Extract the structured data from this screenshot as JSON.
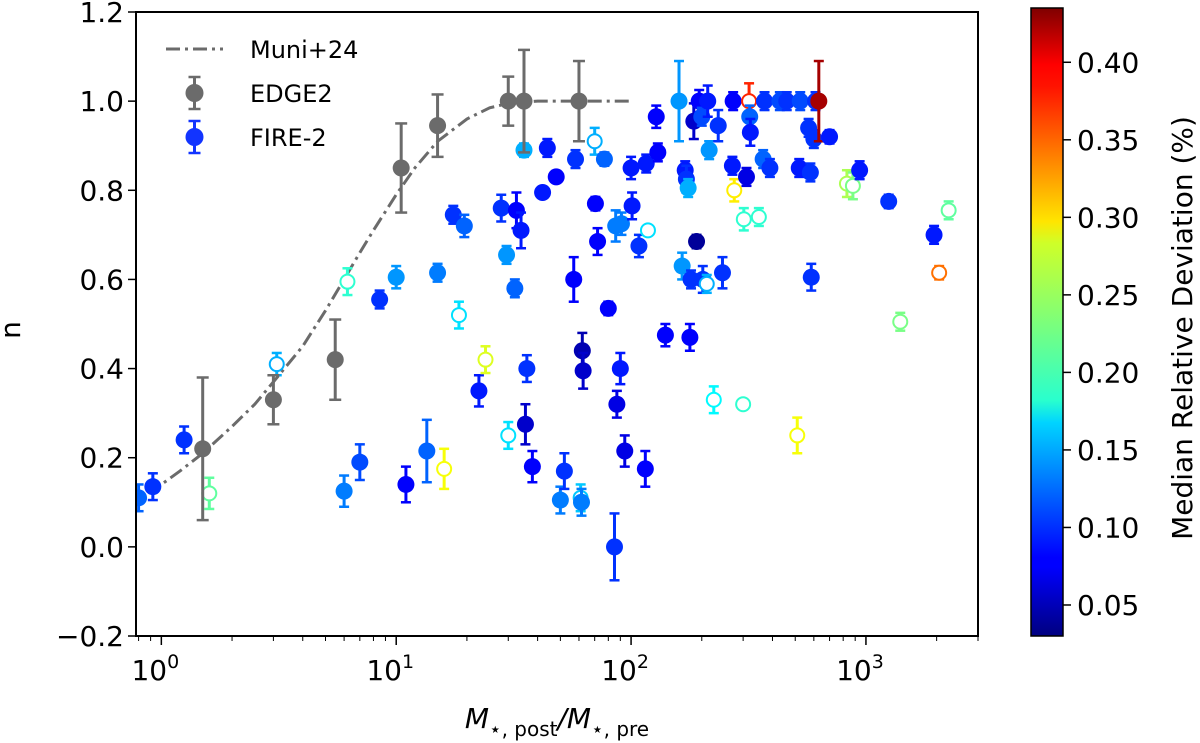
{
  "chart_data": {
    "type": "scatter",
    "xlabel_main": "M",
    "xlabel_sub1": "⋆, post",
    "xlabel_sep": "/M",
    "xlabel_sub2": "⋆, pre",
    "ylabel": "n",
    "xscale": "log",
    "xlim": [
      0.78,
      3000
    ],
    "ylim": [
      -0.2,
      1.2
    ],
    "x_tick_labels": [
      {
        "value": 1,
        "base": "10",
        "exp": "0"
      },
      {
        "value": 10,
        "base": "10",
        "exp": "1"
      },
      {
        "value": 100,
        "base": "10",
        "exp": "2"
      },
      {
        "value": 1000,
        "base": "10",
        "exp": "3"
      }
    ],
    "y_ticks": [
      -0.2,
      0.0,
      0.2,
      0.4,
      0.6,
      0.8,
      1.0,
      1.2
    ],
    "y_tick_labels": [
      "−0.2",
      "0.0",
      "0.2",
      "0.4",
      "0.6",
      "0.8",
      "1.0",
      "1.2"
    ],
    "legend": {
      "position": "top-left",
      "entries": [
        {
          "label": "Muni+24",
          "style": "dashdot",
          "color": "#6b6b6b"
        },
        {
          "label": "EDGE2",
          "style": "marker",
          "color": "#6b6b6b"
        },
        {
          "label": "FIRE-2",
          "style": "marker",
          "color": "#1234ff"
        }
      ]
    },
    "colorbar": {
      "label": "Median Relative Deviation (%)",
      "range": [
        0.03,
        0.435
      ],
      "ticks": [
        0.05,
        0.1,
        0.15,
        0.2,
        0.25,
        0.3,
        0.35,
        0.4
      ],
      "tick_labels": [
        "0.05",
        "0.10",
        "0.15",
        "0.20",
        "0.25",
        "0.30",
        "0.35",
        "0.40"
      ],
      "colormap": "jet"
    },
    "curve": {
      "name": "Muni+24",
      "color": "#6b6b6b",
      "x": [
        0.88,
        1,
        1.2,
        1.5,
        2,
        2.5,
        3,
        4,
        5,
        6,
        7,
        8,
        10,
        12,
        15,
        20,
        25,
        30,
        40,
        50,
        70,
        100
      ],
      "y": [
        0.12,
        0.14,
        0.17,
        0.21,
        0.27,
        0.32,
        0.37,
        0.45,
        0.53,
        0.6,
        0.66,
        0.71,
        0.79,
        0.85,
        0.91,
        0.96,
        0.985,
        0.995,
        1.0,
        1.0,
        1.0,
        1.0
      ]
    },
    "series": [
      {
        "name": "EDGE2",
        "color": "#6b6b6b",
        "points": [
          {
            "x": 1.5,
            "y": 0.22,
            "err": 0.16
          },
          {
            "x": 3.0,
            "y": 0.33,
            "err": 0.055
          },
          {
            "x": 5.5,
            "y": 0.42,
            "err": 0.09
          },
          {
            "x": 10.5,
            "y": 0.85,
            "err": 0.1
          },
          {
            "x": 15.0,
            "y": 0.945,
            "err": 0.07
          },
          {
            "x": 30.0,
            "y": 1.0,
            "err": 0.055
          },
          {
            "x": 35.0,
            "y": 1.0,
            "err": 0.115
          },
          {
            "x": 60.0,
            "y": 1.0,
            "err": 0.09
          }
        ]
      },
      {
        "name": "FIRE-2",
        "points": [
          {
            "x": 0.8,
            "y": 0.11,
            "c": 0.12,
            "err": 0.03
          },
          {
            "x": 0.92,
            "y": 0.135,
            "c": 0.1,
            "err": 0.03
          },
          {
            "x": 1.25,
            "y": 0.24,
            "c": 0.1,
            "err": 0.03
          },
          {
            "x": 1.6,
            "y": 0.12,
            "c": 0.22,
            "err": 0.035,
            "open": true
          },
          {
            "x": 3.1,
            "y": 0.41,
            "c": 0.15,
            "err": 0.025,
            "open": true
          },
          {
            "x": 6.0,
            "y": 0.125,
            "c": 0.13,
            "err": 0.035
          },
          {
            "x": 6.2,
            "y": 0.595,
            "c": 0.2,
            "err": 0.03,
            "open": true
          },
          {
            "x": 7.0,
            "y": 0.19,
            "c": 0.11,
            "err": 0.04
          },
          {
            "x": 8.5,
            "y": 0.555,
            "c": 0.1,
            "err": 0.02
          },
          {
            "x": 10.0,
            "y": 0.605,
            "c": 0.14,
            "err": 0.025
          },
          {
            "x": 11.0,
            "y": 0.14,
            "c": 0.08,
            "err": 0.04
          },
          {
            "x": 13.5,
            "y": 0.215,
            "c": 0.12,
            "err": 0.07
          },
          {
            "x": 15.0,
            "y": 0.615,
            "c": 0.13,
            "err": 0.02
          },
          {
            "x": 16.0,
            "y": 0.175,
            "c": 0.28,
            "err": 0.045,
            "open": true
          },
          {
            "x": 17.5,
            "y": 0.745,
            "c": 0.1,
            "err": 0.02
          },
          {
            "x": 18.5,
            "y": 0.52,
            "c": 0.17,
            "err": 0.03,
            "open": true
          },
          {
            "x": 19.5,
            "y": 0.72,
            "c": 0.12,
            "err": 0.025
          },
          {
            "x": 22.5,
            "y": 0.35,
            "c": 0.09,
            "err": 0.035
          },
          {
            "x": 24.0,
            "y": 0.42,
            "c": 0.27,
            "err": 0.03,
            "open": true
          },
          {
            "x": 28.0,
            "y": 0.76,
            "c": 0.1,
            "err": 0.03
          },
          {
            "x": 29.5,
            "y": 0.655,
            "c": 0.14,
            "err": 0.02
          },
          {
            "x": 30.0,
            "y": 0.25,
            "c": 0.17,
            "err": 0.03,
            "open": true
          },
          {
            "x": 32.0,
            "y": 0.58,
            "c": 0.12,
            "err": 0.02
          },
          {
            "x": 32.5,
            "y": 0.755,
            "c": 0.08,
            "err": 0.04
          },
          {
            "x": 34.0,
            "y": 0.71,
            "c": 0.09,
            "err": 0.04
          },
          {
            "x": 35.0,
            "y": 0.89,
            "c": 0.15,
            "err": 0.015
          },
          {
            "x": 35.5,
            "y": 0.275,
            "c": 0.06,
            "err": 0.045
          },
          {
            "x": 36.0,
            "y": 0.4,
            "c": 0.1,
            "err": 0.03
          },
          {
            "x": 38.0,
            "y": 0.18,
            "c": 0.08,
            "err": 0.035
          },
          {
            "x": 42.0,
            "y": 0.795,
            "c": 0.09,
            "err": 0.01
          },
          {
            "x": 44.0,
            "y": 0.895,
            "c": 0.09,
            "err": 0.02
          },
          {
            "x": 48.0,
            "y": 0.83,
            "c": 0.08,
            "err": 0.01
          },
          {
            "x": 50.0,
            "y": 0.105,
            "c": 0.13,
            "err": 0.03
          },
          {
            "x": 52.0,
            "y": 0.17,
            "c": 0.1,
            "err": 0.04
          },
          {
            "x": 57.0,
            "y": 0.6,
            "c": 0.08,
            "err": 0.05
          },
          {
            "x": 58.0,
            "y": 0.87,
            "c": 0.1,
            "err": 0.02
          },
          {
            "x": 61.0,
            "y": 0.11,
            "c": 0.16,
            "err": 0.03,
            "open": true
          },
          {
            "x": 61.5,
            "y": 0.1,
            "c": 0.13,
            "err": 0.03
          },
          {
            "x": 62.0,
            "y": 0.44,
            "c": 0.05,
            "err": 0.04
          },
          {
            "x": 62.5,
            "y": 0.395,
            "c": 0.06,
            "err": 0.04
          },
          {
            "x": 70.0,
            "y": 0.91,
            "c": 0.15,
            "err": 0.03,
            "open": true
          },
          {
            "x": 72.0,
            "y": 0.685,
            "c": 0.08,
            "err": 0.03
          },
          {
            "x": 70.5,
            "y": 0.77,
            "c": 0.08,
            "err": 0.015
          },
          {
            "x": 77.0,
            "y": 0.87,
            "c": 0.12,
            "err": 0.015
          },
          {
            "x": 80.0,
            "y": 0.535,
            "c": 0.08,
            "err": 0.015
          },
          {
            "x": 85.0,
            "y": 0.0,
            "c": 0.1,
            "err": 0.075
          },
          {
            "x": 86.0,
            "y": 0.72,
            "c": 0.13,
            "err": 0.035
          },
          {
            "x": 87.0,
            "y": 0.32,
            "c": 0.07,
            "err": 0.03
          },
          {
            "x": 90.0,
            "y": 0.4,
            "c": 0.09,
            "err": 0.035
          },
          {
            "x": 91.0,
            "y": 0.725,
            "c": 0.13,
            "err": 0.025
          },
          {
            "x": 94.0,
            "y": 0.215,
            "c": 0.07,
            "err": 0.035
          },
          {
            "x": 100.0,
            "y": 0.85,
            "c": 0.09,
            "err": 0.025
          },
          {
            "x": 101.0,
            "y": 0.765,
            "c": 0.09,
            "err": 0.03
          },
          {
            "x": 108.0,
            "y": 0.675,
            "c": 0.1,
            "err": 0.025
          },
          {
            "x": 115.0,
            "y": 0.175,
            "c": 0.08,
            "err": 0.04
          },
          {
            "x": 116.0,
            "y": 0.86,
            "c": 0.09,
            "err": 0.02
          },
          {
            "x": 118.0,
            "y": 0.71,
            "c": 0.17,
            "err": 0.01,
            "open": true
          },
          {
            "x": 128.0,
            "y": 0.965,
            "c": 0.08,
            "err": 0.025
          },
          {
            "x": 130.0,
            "y": 0.885,
            "c": 0.08,
            "err": 0.02
          },
          {
            "x": 140.0,
            "y": 0.475,
            "c": 0.08,
            "err": 0.025
          },
          {
            "x": 160.0,
            "y": 1.0,
            "c": 0.14,
            "err": 0.09
          },
          {
            "x": 165.0,
            "y": 0.63,
            "c": 0.14,
            "err": 0.03
          },
          {
            "x": 170.0,
            "y": 0.845,
            "c": 0.09,
            "err": 0.02
          },
          {
            "x": 172.0,
            "y": 0.825,
            "c": 0.1,
            "err": 0.03
          },
          {
            "x": 175.0,
            "y": 0.805,
            "c": 0.15,
            "err": 0.02
          },
          {
            "x": 178.0,
            "y": 0.47,
            "c": 0.08,
            "err": 0.03
          },
          {
            "x": 180.0,
            "y": 0.6,
            "c": 0.1,
            "err": 0.02
          },
          {
            "x": 185.0,
            "y": 0.955,
            "c": 0.06,
            "err": 0.04
          },
          {
            "x": 190.0,
            "y": 0.685,
            "c": 0.04,
            "err": 0.015
          },
          {
            "x": 195.0,
            "y": 1.0,
            "c": 0.08,
            "err": 0.025
          },
          {
            "x": 200.0,
            "y": 0.965,
            "c": 0.11,
            "err": 0.02
          },
          {
            "x": 202.0,
            "y": 0.6,
            "c": 0.1,
            "err": 0.03
          },
          {
            "x": 210.0,
            "y": 0.59,
            "c": 0.15,
            "err": 0.02,
            "open": true
          },
          {
            "x": 212.0,
            "y": 1.0,
            "c": 0.09,
            "err": 0.035
          },
          {
            "x": 215.0,
            "y": 0.89,
            "c": 0.14,
            "err": 0.02
          },
          {
            "x": 225.0,
            "y": 0.33,
            "c": 0.18,
            "err": 0.03,
            "open": true
          },
          {
            "x": 235.0,
            "y": 0.945,
            "c": 0.1,
            "err": 0.035
          },
          {
            "x": 245.0,
            "y": 0.615,
            "c": 0.1,
            "err": 0.035
          },
          {
            "x": 270.0,
            "y": 0.855,
            "c": 0.09,
            "err": 0.02
          },
          {
            "x": 272.0,
            "y": 1.0,
            "c": 0.08,
            "err": 0.02
          },
          {
            "x": 275.0,
            "y": 0.8,
            "c": 0.29,
            "err": 0.025,
            "open": true
          },
          {
            "x": 300.0,
            "y": 0.32,
            "c": 0.2,
            "err": 0.01,
            "open": true
          },
          {
            "x": 302.0,
            "y": 0.735,
            "c": 0.2,
            "err": 0.025,
            "open": true
          },
          {
            "x": 310.0,
            "y": 0.83,
            "c": 0.07,
            "err": 0.02
          },
          {
            "x": 318.0,
            "y": 1.0,
            "c": 0.37,
            "err": 0.04,
            "open": true
          },
          {
            "x": 320.0,
            "y": 0.965,
            "c": 0.12,
            "err": 0.025
          },
          {
            "x": 322.0,
            "y": 0.93,
            "c": 0.09,
            "err": 0.03
          },
          {
            "x": 350.0,
            "y": 0.74,
            "c": 0.2,
            "err": 0.02,
            "open": true
          },
          {
            "x": 365.0,
            "y": 0.87,
            "c": 0.12,
            "err": 0.02
          },
          {
            "x": 370.0,
            "y": 1.0,
            "c": 0.1,
            "err": 0.02
          },
          {
            "x": 390.0,
            "y": 0.85,
            "c": 0.1,
            "err": 0.02
          },
          {
            "x": 430.0,
            "y": 1.0,
            "c": 0.11,
            "err": 0.02
          },
          {
            "x": 460.0,
            "y": 1.0,
            "c": 0.1,
            "err": 0.02
          },
          {
            "x": 510.0,
            "y": 0.25,
            "c": 0.28,
            "err": 0.04,
            "open": true
          },
          {
            "x": 520.0,
            "y": 0.85,
            "c": 0.09,
            "err": 0.02
          },
          {
            "x": 525.0,
            "y": 1.0,
            "c": 0.11,
            "err": 0.02
          },
          {
            "x": 570.0,
            "y": 0.94,
            "c": 0.1,
            "err": 0.02
          },
          {
            "x": 580.0,
            "y": 0.84,
            "c": 0.1,
            "err": 0.02
          },
          {
            "x": 585.0,
            "y": 0.605,
            "c": 0.1,
            "err": 0.03
          },
          {
            "x": 600.0,
            "y": 0.915,
            "c": 0.1,
            "err": 0.02
          },
          {
            "x": 610.0,
            "y": 1.0,
            "c": 0.1,
            "err": 0.02
          },
          {
            "x": 630.0,
            "y": 1.0,
            "c": 0.42,
            "err": 0.09
          },
          {
            "x": 700.0,
            "y": 0.92,
            "c": 0.09,
            "err": 0.015
          },
          {
            "x": 830.0,
            "y": 0.815,
            "c": 0.25,
            "err": 0.03,
            "open": true
          },
          {
            "x": 880.0,
            "y": 0.81,
            "c": 0.23,
            "err": 0.03,
            "open": true
          },
          {
            "x": 940.0,
            "y": 0.845,
            "c": 0.09,
            "err": 0.02
          },
          {
            "x": 1250.0,
            "y": 0.775,
            "c": 0.1,
            "err": 0.015
          },
          {
            "x": 1400.0,
            "y": 0.505,
            "c": 0.23,
            "err": 0.02,
            "open": true
          },
          {
            "x": 1950.0,
            "y": 0.7,
            "c": 0.09,
            "err": 0.02
          },
          {
            "x": 2050.0,
            "y": 0.615,
            "c": 0.34,
            "err": 0.015,
            "open": true
          },
          {
            "x": 2250.0,
            "y": 0.755,
            "c": 0.22,
            "err": 0.02,
            "open": true
          }
        ]
      }
    ]
  }
}
